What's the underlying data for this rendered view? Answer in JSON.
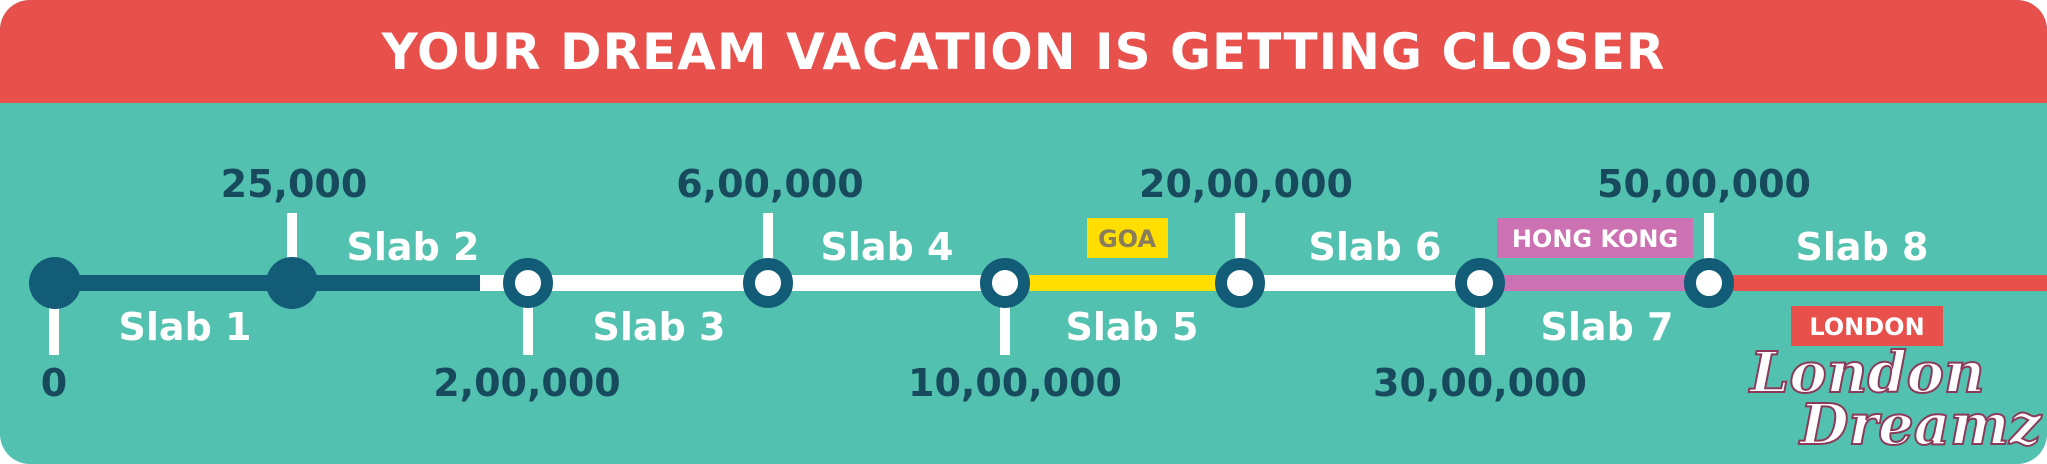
{
  "header": {
    "title": "YOUR DREAM VACATION IS GETTING CLOSER"
  },
  "colors": {
    "background": "#53c1b0",
    "banner": "#e8504c",
    "dark_line": "#135c78",
    "white_line": "#ffffff",
    "goa": "#ffde00",
    "hong_kong": "#cc72b2",
    "london": "#e8504c",
    "amount_text": "#184a5e"
  },
  "milestones": [
    "0",
    "25,000",
    "2,00,000",
    "6,00,000",
    "10,00,000",
    "20,00,000",
    "30,00,000",
    "50,00,000"
  ],
  "slabs": [
    "Slab 1",
    "Slab 2",
    "Slab 3",
    "Slab 4",
    "Slab 5",
    "Slab 6",
    "Slab 7",
    "Slab 8"
  ],
  "destinations": [
    {
      "label": "GOA",
      "slab": "Slab 5"
    },
    {
      "label": "HONG KONG",
      "slab": "Slab 7"
    },
    {
      "label": "LONDON",
      "slab": "Slab 8"
    }
  ],
  "logo": {
    "line1": "London",
    "line2": "Dreamz"
  }
}
